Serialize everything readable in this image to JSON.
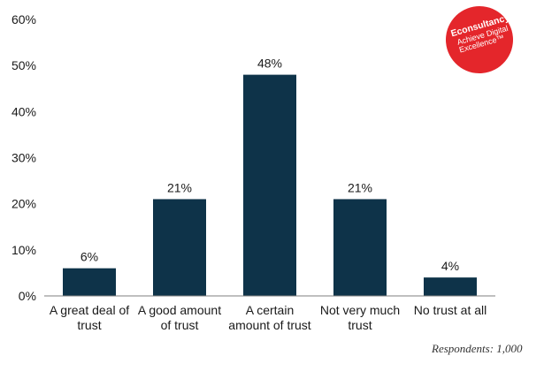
{
  "chart_data": {
    "type": "bar",
    "categories": [
      [
        "A great deal of",
        "trust"
      ],
      [
        "A good amount",
        "of trust"
      ],
      [
        "A certain",
        "amount of trust"
      ],
      [
        "Not very much",
        "trust"
      ],
      [
        "No trust at all"
      ]
    ],
    "values": [
      6,
      21,
      48,
      21,
      4
    ],
    "data_labels": [
      "6%",
      "21%",
      "48%",
      "21%",
      "4%"
    ],
    "yticks": [
      "0%",
      "10%",
      "20%",
      "30%",
      "40%",
      "50%",
      "60%"
    ],
    "ylim": [
      0,
      60
    ],
    "grid": false,
    "bar_color": "#0e3349"
  },
  "logo": {
    "brand": "Econsultancy",
    "tagline": "Achieve Digital Excellence™",
    "color": "#e4262b"
  },
  "footnote": "Respondents: 1,000"
}
